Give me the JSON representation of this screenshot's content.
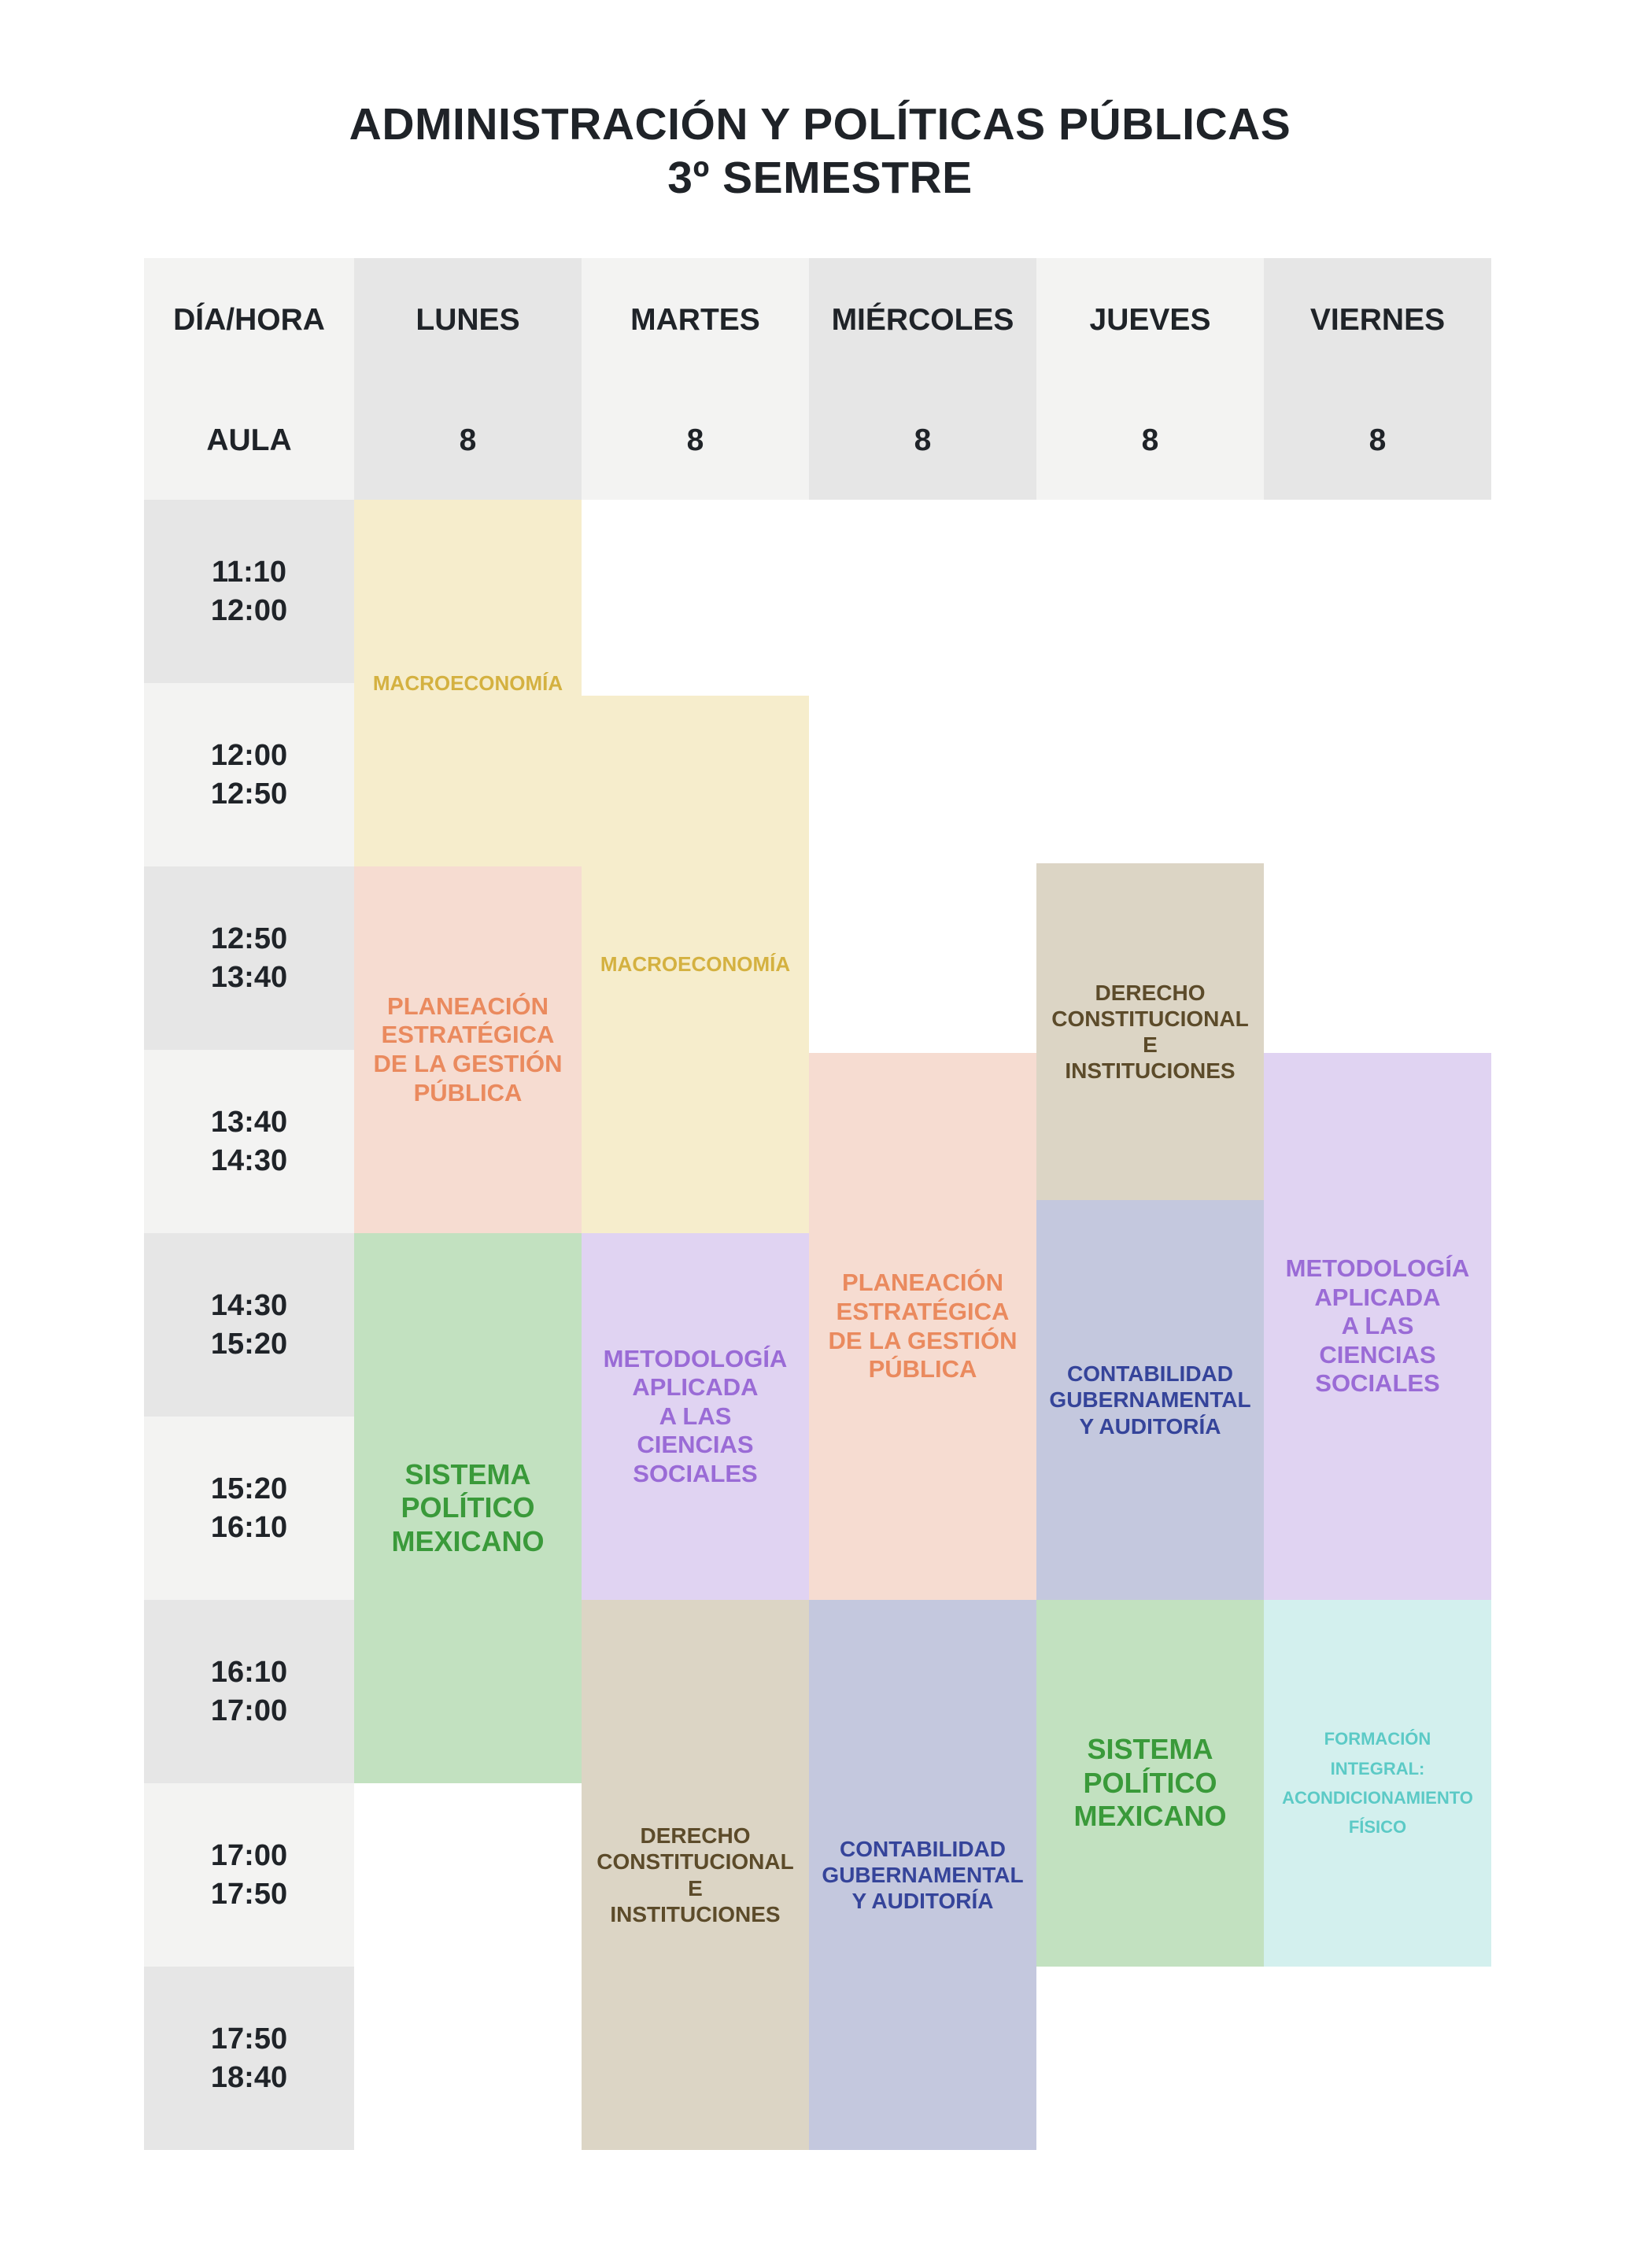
{
  "title": {
    "line1": "ADMINISTRACIÓN Y POLÍTICAS PÚBLICAS",
    "line2": "3º SEMESTRE"
  },
  "header": {
    "corner_day": "DÍA/HORA",
    "corner_room": "AULA",
    "days": [
      {
        "name": "LUNES",
        "room": "8"
      },
      {
        "name": "MARTES",
        "room": "8"
      },
      {
        "name": "MIÉRCOLES",
        "room": "8"
      },
      {
        "name": "JUEVES",
        "room": "8"
      },
      {
        "name": "VIERNES",
        "room": "8"
      }
    ]
  },
  "time_slots": [
    {
      "start": "11:10",
      "end": "12:00"
    },
    {
      "start": "12:00",
      "end": "12:50"
    },
    {
      "start": "12:50",
      "end": "13:40"
    },
    {
      "start": "13:40",
      "end": "14:30"
    },
    {
      "start": "14:30",
      "end": "15:20"
    },
    {
      "start": "15:20",
      "end": "16:10"
    },
    {
      "start": "16:10",
      "end": "17:00"
    },
    {
      "start": "17:00",
      "end": "17:50"
    },
    {
      "start": "17:50",
      "end": "18:40"
    }
  ],
  "classes": {
    "lunes_macro": "MACROECONOMÍA",
    "lunes_planeacion": "PLANEACIÓN\nESTRATÉGICA\nDE LA GESTIÓN\nPÚBLICA",
    "lunes_sistema": "SISTEMA\nPOLÍTICO\nMEXICANO",
    "martes_macro": "MACROECONOMÍA",
    "martes_metodologia": "METODOLOGÍA\nAPLICADA\nA LAS\nCIENCIAS\nSOCIALES",
    "martes_derecho": "DERECHO\nCONSTITUCIONAL\nE\nINSTITUCIONES",
    "miercoles_planeacion": "PLANEACIÓN\nESTRATÉGICA\nDE LA GESTIÓN\nPÚBLICA",
    "miercoles_contabilidad": "CONTABILIDAD\nGUBERNAMENTAL\nY AUDITORÍA",
    "jueves_derecho": "DERECHO\nCONSTITUCIONAL\nE\nINSTITUCIONES",
    "jueves_contabilidad": "CONTABILIDAD\nGUBERNAMENTAL\nY AUDITORÍA",
    "jueves_sistema": "SISTEMA\nPOLÍTICO\nMEXICANO",
    "viernes_metodologia": "METODOLOGÍA\nAPLICADA\nA LAS\nCIENCIAS\nSOCIALES",
    "viernes_formacion": "FORMACIÓN\nINTEGRAL:\nACONDICIONAMIENTO\nFÍSICO"
  },
  "colors": {
    "macroeconomia": "#f6edcc",
    "planeacion": "#f6dcd1",
    "sistema_politico": "#c2e1c0",
    "metodologia": "#e0d3f2",
    "derecho": "#dcd5c5",
    "contabilidad": "#c4c8de",
    "formacion_integral": "#d3f0ee"
  }
}
